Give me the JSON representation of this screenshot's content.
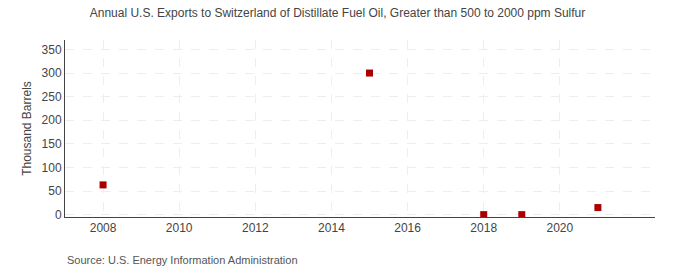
{
  "chart_data": {
    "type": "scatter",
    "title": "Annual U.S. Exports to Switzerland of Distillate Fuel Oil, Greater than 500 to 2000 ppm Sulfur",
    "ylabel": "Thousand Barrels",
    "annotations": [
      "Source: U.S. Energy Information Administration"
    ],
    "x": [
      2008,
      2015,
      2018,
      2019,
      2021
    ],
    "values": [
      63,
      300,
      0,
      0,
      15
    ],
    "color": "#aa0000",
    "marker": "square",
    "xlim": [
      2007.0,
      2022.5
    ],
    "ylim": [
      -5,
      370
    ],
    "xticks": [
      2008,
      2010,
      2012,
      2014,
      2016,
      2018,
      2020
    ],
    "yticks": [
      0,
      50,
      100,
      150,
      200,
      250,
      300,
      350
    ],
    "grid": true
  }
}
